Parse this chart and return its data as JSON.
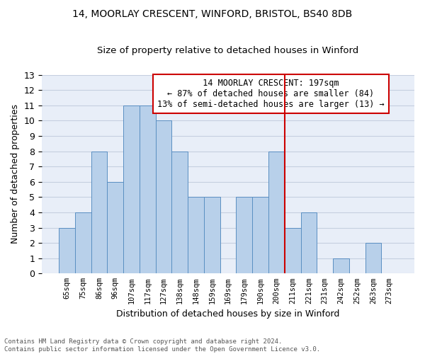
{
  "title1": "14, MOORLAY CRESCENT, WINFORD, BRISTOL, BS40 8DB",
  "title2": "Size of property relative to detached houses in Winford",
  "xlabel": "Distribution of detached houses by size in Winford",
  "ylabel": "Number of detached properties",
  "categories": [
    "65sqm",
    "75sqm",
    "86sqm",
    "96sqm",
    "107sqm",
    "117sqm",
    "127sqm",
    "138sqm",
    "148sqm",
    "159sqm",
    "169sqm",
    "179sqm",
    "190sqm",
    "200sqm",
    "211sqm",
    "221sqm",
    "231sqm",
    "242sqm",
    "252sqm",
    "263sqm",
    "273sqm"
  ],
  "values": [
    3,
    4,
    8,
    6,
    11,
    11,
    10,
    8,
    5,
    5,
    0,
    5,
    5,
    8,
    3,
    4,
    0,
    1,
    0,
    2,
    0
  ],
  "bar_color": "#b8d0ea",
  "bar_edge_color": "#5a8fc2",
  "vline_x": 13.5,
  "vline_color": "#cc0000",
  "annotation_text": "  14 MOORLAY CRESCENT: 197sqm  \n← 87% of detached houses are smaller (84)\n13% of semi-detached houses are larger (13) →",
  "footnote": "Contains HM Land Registry data © Crown copyright and database right 2024.\nContains public sector information licensed under the Open Government Licence v3.0.",
  "ylim": [
    0,
    13
  ],
  "yticks": [
    0,
    1,
    2,
    3,
    4,
    5,
    6,
    7,
    8,
    9,
    10,
    11,
    12,
    13
  ],
  "background_color": "#e8eef8",
  "grid_color": "#c5cfe0"
}
